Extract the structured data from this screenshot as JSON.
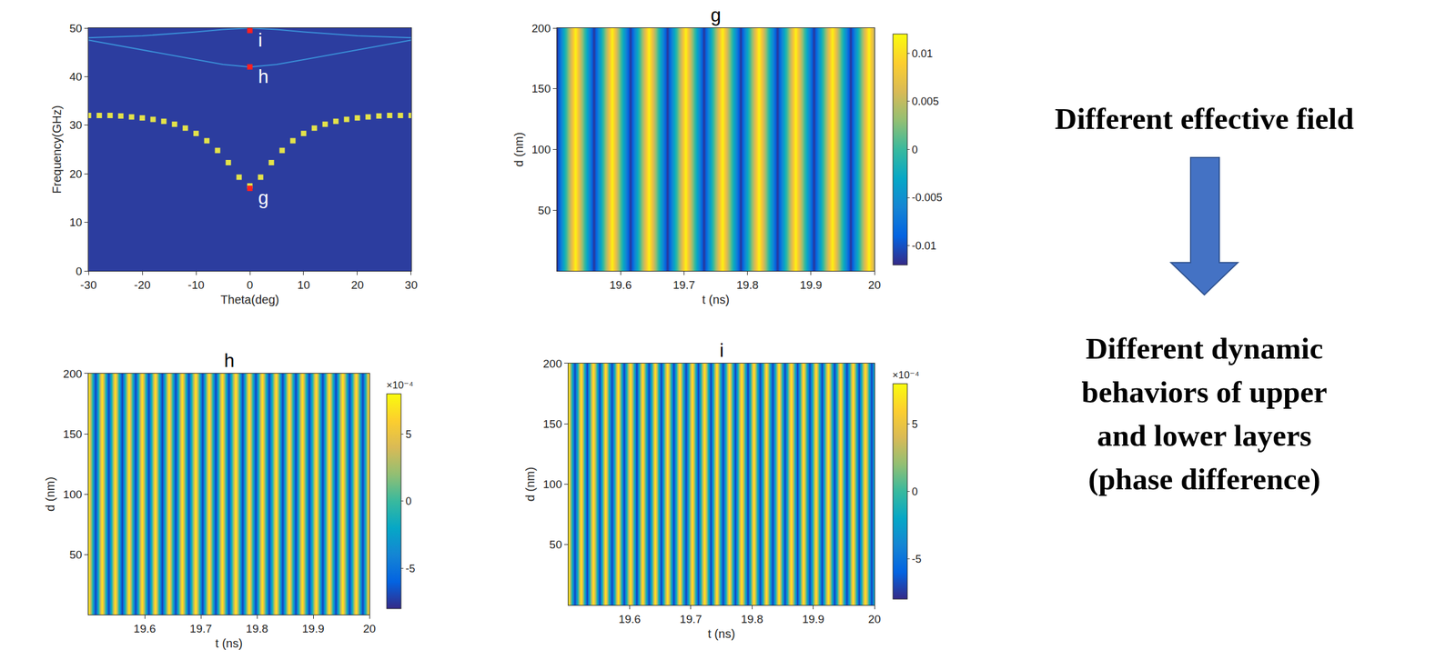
{
  "chart_data": [
    {
      "type": "dispersion",
      "x_label": "Theta(deg)",
      "y_label": "Frequency(GHz)",
      "xlim": [
        -30,
        30
      ],
      "xticks": [
        -30,
        -20,
        -10,
        0,
        10,
        20,
        30
      ],
      "ylim": [
        0,
        50
      ],
      "yticks": [
        0,
        10,
        20,
        30,
        40,
        50
      ],
      "series": [
        {
          "color": "#e3e24a",
          "marker": "square",
          "x": [
            -30,
            -28,
            -26,
            -24,
            -22,
            -20,
            -18,
            -16,
            -14,
            -12,
            -10,
            -8,
            -6,
            -4,
            -2,
            0,
            2,
            4,
            6,
            8,
            10,
            12,
            14,
            16,
            18,
            20,
            22,
            24,
            26,
            28,
            30
          ],
          "values": [
            32,
            32,
            32,
            31.9,
            31.7,
            31.5,
            31.2,
            30.8,
            30.2,
            29.4,
            28.3,
            26.8,
            24.8,
            22.3,
            19.3,
            17.5,
            19.3,
            22.3,
            24.8,
            26.8,
            28.3,
            29.4,
            30.2,
            30.8,
            31.2,
            31.5,
            31.7,
            31.9,
            32,
            32,
            32
          ]
        },
        {
          "color": "#3a8fd8",
          "line_style": "solid",
          "x": [
            -30,
            -20,
            -10,
            -5,
            0,
            5,
            10,
            20,
            30
          ],
          "values": [
            48,
            48.4,
            49.2,
            49.7,
            50,
            49.7,
            49.2,
            48.4,
            48
          ]
        },
        {
          "color": "#3a8fd8",
          "line_style": "solid",
          "x": [
            -30,
            -20,
            -10,
            -5,
            0,
            5,
            10,
            20,
            30
          ],
          "values": [
            47.5,
            45.5,
            43.5,
            42.5,
            42,
            42.5,
            43.5,
            45.5,
            47.5
          ]
        }
      ],
      "points": [
        {
          "label": "g",
          "x": 0,
          "y": 17
        },
        {
          "label": "h",
          "x": 0,
          "y": 42
        },
        {
          "label": "i",
          "x": 0,
          "y": 49.5
        }
      ],
      "color": "#ff2020"
    },
    {
      "type": "heatmap",
      "title": "g",
      "x_label": "t (ns)",
      "y_label": "d (nm)",
      "xlim": [
        19.5,
        20
      ],
      "xticks": [
        19.6,
        19.7,
        19.8,
        19.9,
        20
      ],
      "ylim": [
        0,
        200
      ],
      "yticks": [
        50,
        100,
        150,
        200
      ],
      "t0": 19.5,
      "dt": 0.0289,
      "d": [
        0,
        200
      ],
      "cells": [
        [
          -0.0115,
          0.0115,
          -0.0115,
          0.0115,
          -0.0115,
          0.0115,
          -0.0115,
          0.0115,
          -0.0115,
          0.0115,
          -0.0115,
          0.0115,
          -0.0115,
          0.0115,
          -0.0115,
          0.0115,
          -0.0115,
          0.0115,
          -0.0115
        ],
        [
          -0.0115,
          0.0115,
          -0.0115,
          0.0115,
          -0.0115,
          0.0115,
          -0.0115,
          0.0115,
          -0.0115,
          0.0115,
          -0.0115,
          0.0115,
          -0.0115,
          0.0115,
          -0.0115,
          0.0115,
          -0.0115,
          0.0115,
          -0.0115
        ]
      ],
      "colorbar": {
        "range": [
          -0.012,
          0.012
        ],
        "ticks": [
          -0.01,
          -0.005,
          0,
          0.005,
          0.01
        ]
      }
    },
    {
      "type": "heatmap",
      "title": "h",
      "x_label": "t (ns)",
      "y_label": "d (nm)",
      "xlim": [
        19.5,
        20
      ],
      "xticks": [
        19.6,
        19.7,
        19.8,
        19.9,
        20
      ],
      "ylim": [
        0,
        200
      ],
      "yticks": [
        50,
        100,
        150,
        200
      ],
      "t0": 19.5,
      "dt": 0.0119,
      "d": [
        0,
        200
      ],
      "cells": [
        [
          7.5,
          -7.5,
          7.5,
          -7.5,
          7.5,
          -7.5,
          7.5,
          -7.5,
          7.5,
          -7.5,
          7.5,
          -7.5,
          7.5,
          -7.5,
          7.5,
          -7.5,
          7.5,
          -7.5,
          7.5,
          -7.5,
          7.5,
          -7.5,
          7.5,
          -7.5,
          7.5,
          -7.5,
          7.5,
          -7.5,
          7.5,
          -7.5,
          7.5,
          -7.5,
          7.5,
          -7.5,
          7.5,
          -7.5,
          7.5,
          -7.5,
          7.5,
          -7.5,
          7.5,
          -7.5,
          7.5
        ],
        [
          7.5,
          -7.5,
          7.5,
          -7.5,
          7.5,
          -7.5,
          7.5,
          -7.5,
          7.5,
          -7.5,
          7.5,
          -7.5,
          7.5,
          -7.5,
          7.5,
          -7.5,
          7.5,
          -7.5,
          7.5,
          -7.5,
          7.5,
          -7.5,
          7.5,
          -7.5,
          7.5,
          -7.5,
          7.5,
          -7.5,
          7.5,
          -7.5,
          7.5,
          -7.5,
          7.5,
          -7.5,
          7.5,
          -7.5,
          7.5,
          -7.5,
          7.5,
          -7.5,
          7.5,
          -7.5,
          7.5
        ]
      ],
      "colorbar": {
        "range": [
          -8,
          8
        ],
        "ticks": [
          -5,
          0,
          5
        ],
        "title": "×10⁻⁴"
      }
    },
    {
      "type": "heatmap",
      "title": "i",
      "x_label": "t (ns)",
      "y_label": "d (nm)",
      "xlim": [
        19.5,
        20
      ],
      "xticks": [
        19.6,
        19.7,
        19.8,
        19.9,
        20
      ],
      "ylim": [
        0,
        200
      ],
      "yticks": [
        50,
        100,
        150,
        200
      ],
      "t0": 19.5,
      "dt": 0.0101,
      "d": [
        0,
        200
      ],
      "cells": [
        [
          7.5,
          -7.5,
          7.5,
          -7.5,
          7.5,
          -7.5,
          7.5,
          -7.5,
          7.5,
          -7.5,
          7.5,
          -7.5,
          7.5,
          -7.5,
          7.5,
          -7.5,
          7.5,
          -7.5,
          7.5,
          -7.5,
          7.5,
          -7.5,
          7.5,
          -7.5,
          7.5,
          -7.5,
          7.5,
          -7.5,
          7.5,
          -7.5,
          7.5,
          -7.5,
          7.5,
          -7.5,
          7.5,
          -7.5,
          7.5,
          -7.5,
          7.5,
          -7.5,
          7.5,
          -7.5,
          7.5,
          -7.5,
          7.5,
          -7.5,
          7.5,
          -7.5,
          7.5,
          -7.5,
          7.5
        ],
        [
          7.5,
          -7.5,
          7.5,
          -7.5,
          7.5,
          -7.5,
          7.5,
          -7.5,
          7.5,
          -7.5,
          7.5,
          -7.5,
          7.5,
          -7.5,
          7.5,
          -7.5,
          7.5,
          -7.5,
          7.5,
          -7.5,
          7.5,
          -7.5,
          7.5,
          -7.5,
          7.5,
          -7.5,
          7.5,
          -7.5,
          7.5,
          -7.5,
          7.5,
          -7.5,
          7.5,
          -7.5,
          7.5,
          -7.5,
          7.5,
          -7.5,
          7.5,
          -7.5,
          7.5,
          -7.5,
          7.5,
          -7.5,
          7.5,
          -7.5,
          7.5,
          -7.5,
          7.5,
          -7.5,
          7.5
        ]
      ],
      "colorbar": {
        "range": [
          -8,
          8
        ],
        "ticks": [
          -5,
          0,
          5
        ],
        "title": "×10⁻⁴"
      }
    }
  ],
  "side_text": {
    "cause": "Different effective field",
    "effect": [
      "Different dynamic",
      "behaviors of upper",
      "and lower layers",
      "(phase difference)"
    ]
  }
}
